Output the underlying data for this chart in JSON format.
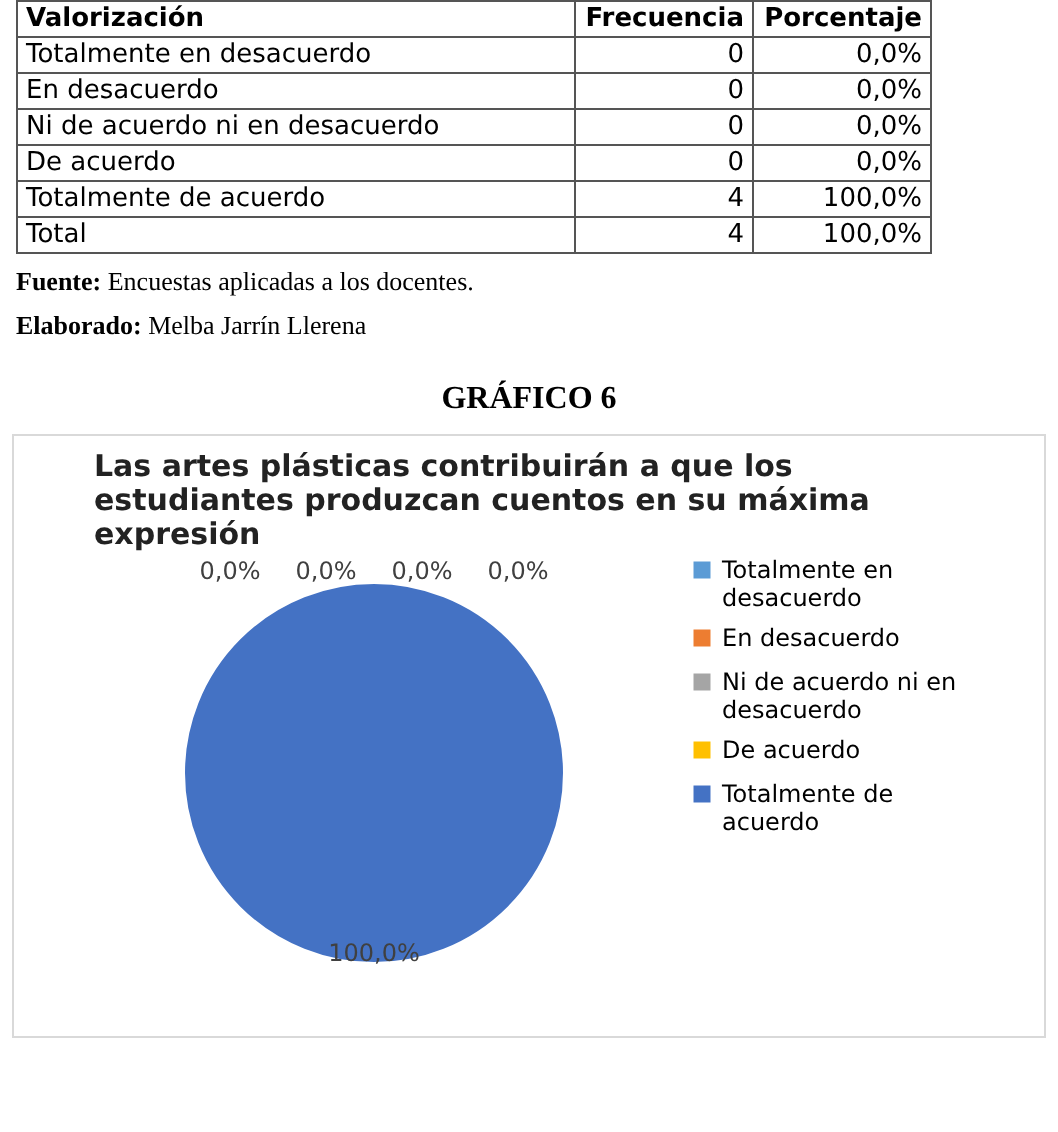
{
  "chart_data": {
    "type": "pie",
    "title": "Las artes plásticas contribuirán a que los estudiantes produzcan cuentos en su máxima expresión",
    "categories": [
      "Totalmente en desacuerdo",
      "En desacuerdo",
      "Ni de acuerdo ni en desacuerdo",
      "De acuerdo",
      "Totalmente de acuerdo"
    ],
    "values": [
      0,
      0,
      0,
      0,
      100
    ],
    "colors": [
      "#5b9bd5",
      "#ed7d31",
      "#a5a5a5",
      "#ffc000",
      "#4472c4"
    ],
    "value_labels": [
      "0,0%",
      "0,0%",
      "0,0%",
      "0,0%",
      "100,0%"
    ],
    "legend": "right",
    "annotations": [
      "Valorización",
      "Frecuencia",
      "Porcentaje",
      "Totalmente en desacuerdo",
      "0",
      "0,0%",
      "En desacuerdo",
      "0",
      "0,0%",
      "Ni de acuerdo ni en desacuerdo",
      "0",
      "0,0%",
      "De acuerdo",
      "0",
      "0,0%",
      "Totalmente de acuerdo",
      "4",
      "100,0%",
      "Total",
      "4",
      "100,0%",
      "Fuente: Encuestas aplicadas a los docentes.",
      "Elaborado: Melba Jarrín Llerena",
      "GRÁFICO  6"
    ]
  }
}
